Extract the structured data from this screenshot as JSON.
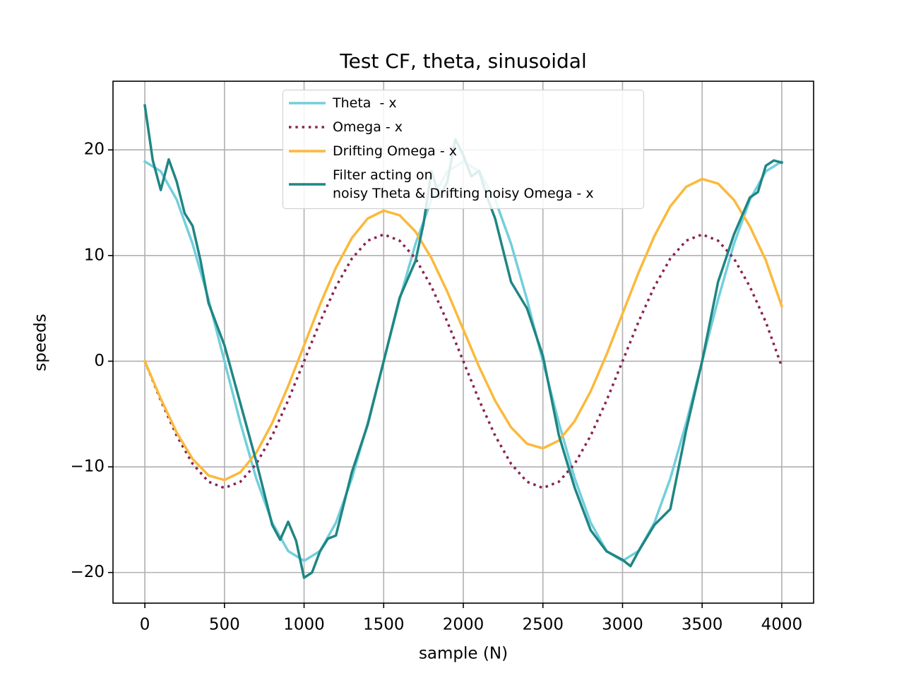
{
  "chart_data": {
    "type": "line",
    "title": "Test CF, theta, sinusoidal",
    "xlabel": "sample (N)",
    "ylabel": "speeds",
    "x": [
      0,
      100,
      200,
      300,
      400,
      500,
      600,
      700,
      800,
      900,
      1000,
      1100,
      1200,
      1300,
      1400,
      1500,
      1600,
      1700,
      1800,
      1900,
      2000,
      2100,
      2200,
      2300,
      2400,
      2500,
      2600,
      2700,
      2800,
      2900,
      3000,
      3100,
      3200,
      3300,
      3400,
      3500,
      3600,
      3700,
      3800,
      3900,
      4000
    ],
    "series": [
      {
        "name": "Theta  - x",
        "color": "#72cfdc",
        "style": "solid",
        "values": [
          18.9,
          17.97,
          15.29,
          11.11,
          5.84,
          0,
          -5.84,
          -11.11,
          -15.29,
          -17.97,
          -18.9,
          -17.97,
          -15.29,
          -11.11,
          -5.84,
          0,
          5.84,
          11.11,
          15.29,
          17.97,
          18.9,
          17.97,
          15.29,
          11.11,
          5.84,
          0,
          -5.84,
          -11.11,
          -15.29,
          -17.97,
          -18.9,
          -17.97,
          -15.29,
          -11.11,
          -5.84,
          0,
          5.84,
          11.11,
          15.29,
          17.97,
          18.9
        ]
      },
      {
        "name": "Omega - x",
        "color": "#8b2252",
        "style": "dotted",
        "values": [
          0,
          -3.71,
          -7.05,
          -9.71,
          -11.41,
          -12,
          -11.41,
          -9.71,
          -7.05,
          -3.71,
          0,
          3.71,
          7.05,
          9.71,
          11.41,
          12,
          11.41,
          9.71,
          7.05,
          3.71,
          0,
          -3.71,
          -7.05,
          -9.71,
          -11.41,
          -12,
          -11.41,
          -9.71,
          -7.05,
          -3.71,
          0,
          3.71,
          7.05,
          9.71,
          11.41,
          12,
          11.41,
          9.71,
          7.05,
          3.71,
          -0.5
        ]
      },
      {
        "name": "Drifting Omega - x",
        "color": "#fbb93c",
        "style": "solid",
        "values": [
          0,
          -3.56,
          -6.75,
          -9.26,
          -10.81,
          -11.25,
          -10.51,
          -8.66,
          -5.85,
          -2.36,
          1.5,
          5.36,
          8.85,
          11.66,
          13.51,
          14.25,
          13.81,
          12.26,
          9.75,
          6.56,
          3,
          -0.56,
          -3.75,
          -6.26,
          -7.81,
          -8.25,
          -7.51,
          -5.66,
          -2.85,
          0.64,
          4.5,
          8.36,
          11.85,
          14.66,
          16.51,
          17.25,
          16.81,
          15.26,
          12.75,
          9.56,
          5.2
        ]
      },
      {
        "name": "Filter acting on\nnoisy Theta & Drifting noisy Omega - x",
        "color": "#1f8683",
        "style": "solid",
        "x": [
          0,
          50,
          100,
          150,
          200,
          250,
          300,
          350,
          400,
          450,
          500,
          600,
          700,
          800,
          850,
          900,
          950,
          1000,
          1050,
          1100,
          1150,
          1200,
          1300,
          1400,
          1500,
          1600,
          1700,
          1750,
          1800,
          1850,
          1900,
          1950,
          2000,
          2050,
          2100,
          2150,
          2200,
          2300,
          2400,
          2500,
          2600,
          2700,
          2800,
          2900,
          3000,
          3050,
          3100,
          3200,
          3300,
          3400,
          3500,
          3600,
          3700,
          3800,
          3850,
          3900,
          3950,
          4000
        ],
        "values": [
          24.2,
          19,
          16.2,
          19.1,
          17,
          14,
          12.8,
          9.5,
          5.5,
          3.5,
          1.5,
          -4,
          -9.5,
          -15.5,
          -16.9,
          -15.2,
          -17,
          -20.5,
          -20,
          -18,
          -16.8,
          -16.5,
          -10.5,
          -6,
          0,
          6,
          9.5,
          13,
          18,
          15.5,
          17,
          21,
          19.5,
          17.5,
          18,
          15.5,
          13.5,
          7.5,
          5,
          0.5,
          -7,
          -12,
          -16,
          -18,
          -18.8,
          -19.4,
          -18,
          -15.5,
          -14,
          -6.5,
          0,
          7.5,
          12,
          15.5,
          16,
          18.5,
          19,
          18.8
        ]
      }
    ],
    "xlim": [
      -200,
      4200
    ],
    "ylim": [
      -22.9,
      26.5
    ],
    "xticks": [
      0,
      500,
      1000,
      1500,
      2000,
      2500,
      3000,
      3500,
      4000
    ],
    "yticks": [
      {
        "value": -20,
        "label": "−20"
      },
      {
        "value": -10,
        "label": "−10"
      },
      0,
      10,
      20
    ],
    "grid": true,
    "legend": "upper center"
  }
}
